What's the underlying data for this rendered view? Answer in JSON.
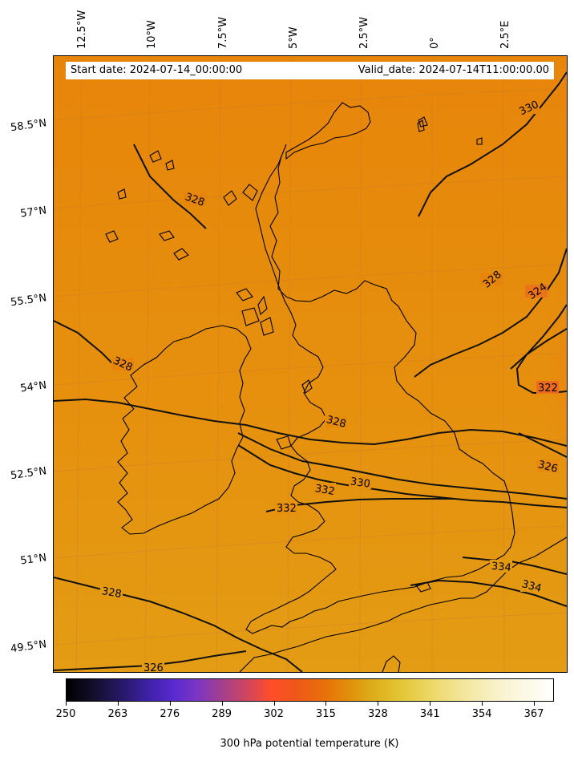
{
  "info": {
    "start_date": "Start date: 2024-07-14_00:00:00",
    "valid_date": "Valid_date: 2024-07-14T11:00:00.00"
  },
  "longitude_labels": [
    "12.5°W",
    "10°W",
    "7.5°W",
    "5°W",
    "2.5°W",
    "0°",
    "2.5°E"
  ],
  "latitude_labels": [
    "58.5°N",
    "57°N",
    "55.5°N",
    "54°N",
    "52.5°N",
    "51°N",
    "49.5°N"
  ],
  "contour_labels": [
    "330",
    "328",
    "328",
    "324",
    "328",
    "322",
    "328",
    "326",
    "330",
    "332",
    "332",
    "334",
    "334",
    "328",
    "326"
  ],
  "colorbar": {
    "ticks": [
      "250",
      "263",
      "276",
      "289",
      "302",
      "315",
      "328",
      "341",
      "354",
      "367"
    ],
    "title": "300 hPa potential temperature (K)",
    "range": [
      250,
      372
    ]
  },
  "field_colors": {
    "base": "#e88a0c",
    "warm_south": "#e39a12",
    "cool_northeast": "#ee6a1c",
    "coast_line": "#000000"
  }
}
